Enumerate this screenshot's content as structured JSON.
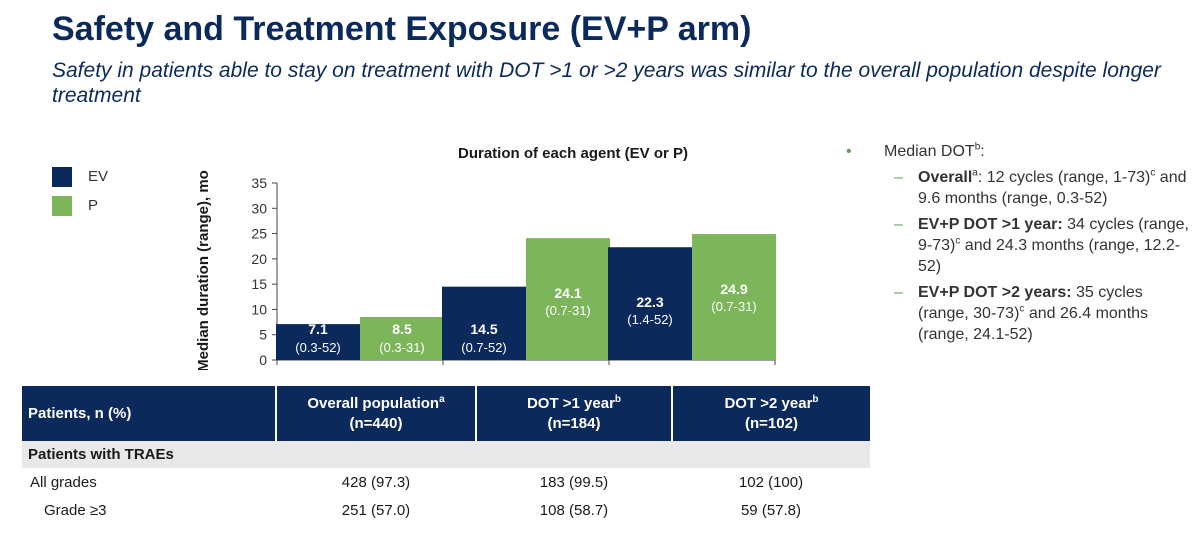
{
  "title": "Safety and Treatment Exposure (EV+P arm)",
  "subtitle": "Safety in patients able to stay on treatment with DOT >1 or >2 years was similar to the overall population despite longer treatment",
  "legend": [
    {
      "label": "EV",
      "color": "#0b2a5b"
    },
    {
      "label": "P",
      "color": "#7db65a"
    }
  ],
  "chart_data": {
    "type": "bar",
    "title": "Duration of each agent (EV or P)",
    "ylabel": "Median duration (range), mo",
    "ylim": [
      0,
      35
    ],
    "yticks": [
      0,
      5,
      10,
      15,
      20,
      25,
      30,
      35
    ],
    "categories": [
      "Overall population",
      "DOT >1 year",
      "DOT >2 year"
    ],
    "series": [
      {
        "name": "EV",
        "color": "#0b2a5b",
        "values": [
          7.1,
          14.5,
          22.3
        ],
        "labels": [
          "7.1",
          "14.5",
          "22.3"
        ],
        "ranges": [
          "(0.3-52)",
          "(0.7-52)",
          "(1.4-52)"
        ]
      },
      {
        "name": "P",
        "color": "#7db65a",
        "values": [
          8.5,
          24.1,
          24.9
        ],
        "labels": [
          "8.5",
          "24.1",
          "24.9"
        ],
        "ranges": [
          "(0.3-31)",
          "(0.7-31)",
          "(0.7-31)"
        ]
      }
    ]
  },
  "bullets": {
    "main": "Median DOT",
    "main_sup": "b",
    "items": [
      {
        "bold": "Overall",
        "bold_sup": "a",
        "text1": ": 12 cycles (range, 1-73)",
        "sup": "c",
        "text2": " and 9.6 months (range, 0.3-52)"
      },
      {
        "bold": "EV+P DOT >1 year:",
        "bold_sup": "",
        "text1": " 34 cycles (range, 9-73)",
        "sup": "c",
        "text2": " and 24.3 months (range, 12.2-52)"
      },
      {
        "bold": "EV+P DOT >2 years:",
        "bold_sup": "",
        "text1": " 35 cycles (range, 30-73)",
        "sup": "c",
        "text2": " and 26.4 months (range, 24.1-52)"
      }
    ]
  },
  "table": {
    "header": [
      {
        "label": "Patients, n (%)",
        "sup": "",
        "n": ""
      },
      {
        "label": "Overall population",
        "sup": "a",
        "n": "(n=440)"
      },
      {
        "label": "DOT >1 year",
        "sup": "b",
        "n": "(n=184)"
      },
      {
        "label": "DOT >2 year",
        "sup": "b",
        "n": "(n=102)"
      }
    ],
    "section": "Patients with TRAEs",
    "rows": [
      {
        "label": "All grades",
        "cells": [
          "428 (97.3)",
          "183 (99.5)",
          "102 (100)"
        ]
      },
      {
        "label": "Grade ≥3",
        "cells": [
          "251 (57.0)",
          "108 (58.7)",
          "59 (57.8)"
        ]
      }
    ]
  }
}
